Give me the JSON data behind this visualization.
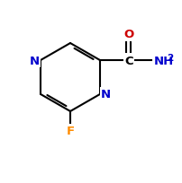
{
  "background_color": "#ffffff",
  "bond_color": "#000000",
  "atom_colors": {
    "C": "#000000",
    "N": "#0000cd",
    "O": "#cd0000",
    "F": "#ff8c00",
    "H": "#000000"
  },
  "figsize": [
    2.03,
    2.05
  ],
  "dpi": 100
}
